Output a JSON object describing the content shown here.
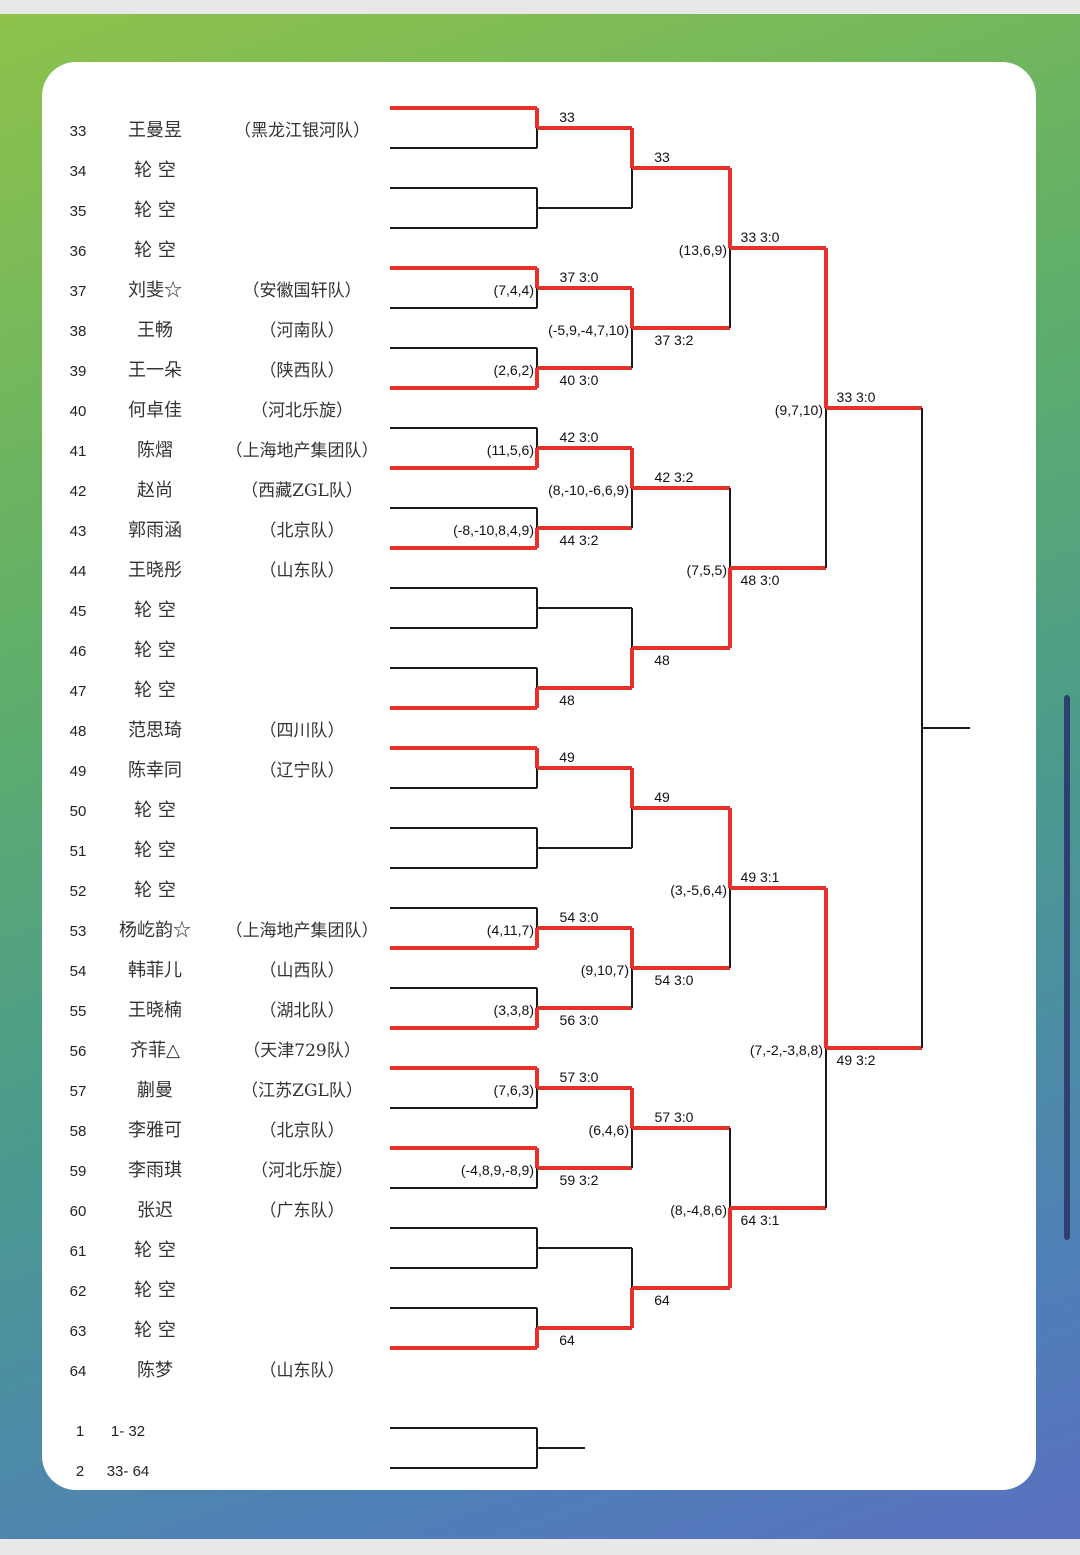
{
  "colors": {
    "win": "#e8302a",
    "line": "#1a1a1a"
  },
  "players": [
    {
      "seed": "33",
      "name": "王曼昱",
      "team": "（黑龙江银河队）"
    },
    {
      "seed": "34",
      "name": "轮  空",
      "team": ""
    },
    {
      "seed": "35",
      "name": "轮  空",
      "team": ""
    },
    {
      "seed": "36",
      "name": "轮  空",
      "team": ""
    },
    {
      "seed": "37",
      "name": "刘斐☆",
      "team": "（安徽国轩队）"
    },
    {
      "seed": "38",
      "name": "王畅",
      "team": "（河南队）"
    },
    {
      "seed": "39",
      "name": "王一朵",
      "team": "（陕西队）"
    },
    {
      "seed": "40",
      "name": "何卓佳",
      "team": "（河北乐旋）"
    },
    {
      "seed": "41",
      "name": "陈熠",
      "team": "（上海地产集团队）"
    },
    {
      "seed": "42",
      "name": "赵尚",
      "team": "（西藏ZGL队）"
    },
    {
      "seed": "43",
      "name": "郭雨涵",
      "team": "（北京队）"
    },
    {
      "seed": "44",
      "name": "王晓彤",
      "team": "（山东队）"
    },
    {
      "seed": "45",
      "name": "轮  空",
      "team": ""
    },
    {
      "seed": "46",
      "name": "轮  空",
      "team": ""
    },
    {
      "seed": "47",
      "name": "轮  空",
      "team": ""
    },
    {
      "seed": "48",
      "name": "范思琦",
      "team": "（四川队）"
    },
    {
      "seed": "49",
      "name": "陈幸同",
      "team": "（辽宁队）"
    },
    {
      "seed": "50",
      "name": "轮  空",
      "team": ""
    },
    {
      "seed": "51",
      "name": "轮  空",
      "team": ""
    },
    {
      "seed": "52",
      "name": "轮  空",
      "team": ""
    },
    {
      "seed": "53",
      "name": "杨屹韵☆",
      "team": "（上海地产集团队）"
    },
    {
      "seed": "54",
      "name": "韩菲儿",
      "team": "（山西队）"
    },
    {
      "seed": "55",
      "name": "王晓楠",
      "team": "（湖北队）"
    },
    {
      "seed": "56",
      "name": "齐菲△",
      "team": "（天津729队）"
    },
    {
      "seed": "57",
      "name": "蒯曼",
      "team": "（江苏ZGL队）"
    },
    {
      "seed": "58",
      "name": "李雅可",
      "team": "（北京队）"
    },
    {
      "seed": "59",
      "name": "李雨琪",
      "team": "（河北乐旋）"
    },
    {
      "seed": "60",
      "name": "张迟",
      "team": "（广东队）"
    },
    {
      "seed": "61",
      "name": "轮  空",
      "team": ""
    },
    {
      "seed": "62",
      "name": "轮  空",
      "team": ""
    },
    {
      "seed": "63",
      "name": "轮  空",
      "team": ""
    },
    {
      "seed": "64",
      "name": "陈梦",
      "team": "（山东队）"
    }
  ],
  "rounds": [
    [
      {
        "winner": "top",
        "label": "33",
        "score": ""
      },
      {
        "winner": null,
        "label": "",
        "score": ""
      },
      {
        "winner": "top",
        "label": "37  3:0",
        "score": "(7,4,4)"
      },
      {
        "winner": "bottom",
        "label": "40  3:0",
        "score": "(2,6,2)"
      },
      {
        "winner": "bottom",
        "label": "42  3:0",
        "score": "(11,5,6)"
      },
      {
        "winner": "bottom",
        "label": "44  3:2",
        "score": "(-8,-10,8,4,9)"
      },
      {
        "winner": null,
        "label": "",
        "score": ""
      },
      {
        "winner": "bottom",
        "label": "48",
        "score": ""
      },
      {
        "winner": "top",
        "label": "49",
        "score": ""
      },
      {
        "winner": null,
        "label": "",
        "score": ""
      },
      {
        "winner": "bottom",
        "label": "54  3:0",
        "score": "(4,11,7)"
      },
      {
        "winner": "bottom",
        "label": "56  3:0",
        "score": "(3,3,8)"
      },
      {
        "winner": "top",
        "label": "57  3:0",
        "score": "(7,6,3)"
      },
      {
        "winner": "top",
        "label": "59  3:2",
        "score": "(-4,8,9,-8,9)"
      },
      {
        "winner": null,
        "label": "",
        "score": ""
      },
      {
        "winner": "bottom",
        "label": "64",
        "score": ""
      }
    ],
    [
      {
        "winner": "top",
        "label": "33",
        "score": ""
      },
      {
        "winner": "top",
        "label": "37  3:2",
        "score": "(-5,9,-4,7,10)"
      },
      {
        "winner": "top",
        "label": "42  3:2",
        "score": "(8,-10,-6,6,9)"
      },
      {
        "winner": "bottom",
        "label": "48",
        "score": ""
      },
      {
        "winner": "top",
        "label": "49",
        "score": ""
      },
      {
        "winner": "top",
        "label": "54  3:0",
        "score": "(9,10,7)"
      },
      {
        "winner": "top",
        "label": "57  3:0",
        "score": "(6,4,6)"
      },
      {
        "winner": "bottom",
        "label": "64",
        "score": ""
      }
    ],
    [
      {
        "winner": "top",
        "label": "33  3:0",
        "score": "(13,6,9)"
      },
      {
        "winner": "bottom",
        "label": "48  3:0",
        "score": "(7,5,5)"
      },
      {
        "winner": "top",
        "label": "49  3:1",
        "score": "(3,-5,6,4)"
      },
      {
        "winner": "bottom",
        "label": "64  3:1",
        "score": "(8,-4,8,6)"
      }
    ],
    [
      {
        "winner": "top",
        "label": "33  3:0",
        "score": "(9,7,10)"
      },
      {
        "winner": "top",
        "label": "49  3:2",
        "score": "(7,-2,-3,8,8)"
      }
    ],
    [
      {
        "winner": null,
        "label": "",
        "score": ""
      }
    ]
  ],
  "final_groups": [
    {
      "no": "1",
      "range": "1- 32"
    },
    {
      "no": "2",
      "range": "33- 64"
    }
  ]
}
